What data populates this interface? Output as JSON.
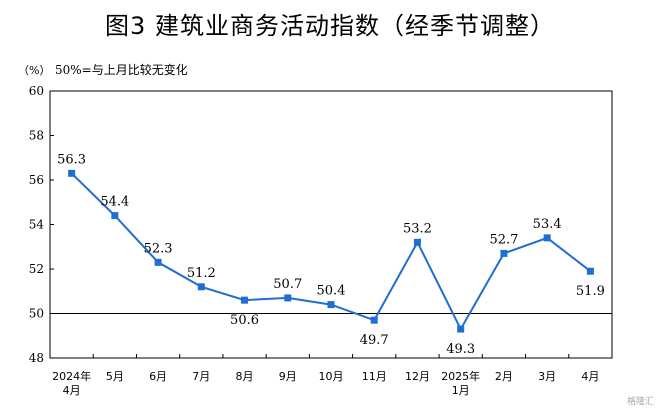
{
  "title": "图3  建筑业商务活动指数（经季节调整）",
  "unit_label": "（%）",
  "note": "50%=与上月比较无变化",
  "watermark": "格隆汇",
  "chart_data": {
    "type": "line",
    "title": "图3  建筑业商务活动指数（经季节调整）",
    "xlabel": "",
    "ylabel": "（%）",
    "ylim": [
      48,
      60
    ],
    "yticks": [
      48,
      50,
      52,
      54,
      56,
      58,
      60
    ],
    "reference_line": 50,
    "grid": false,
    "color": "#1f6fd0",
    "categories": [
      [
        "2024年",
        "4月"
      ],
      [
        "5月"
      ],
      [
        "6月"
      ],
      [
        "7月"
      ],
      [
        "8月"
      ],
      [
        "9月"
      ],
      [
        "10月"
      ],
      [
        "11月"
      ],
      [
        "12月"
      ],
      [
        "2025年",
        "1月"
      ],
      [
        "2月"
      ],
      [
        "3月"
      ],
      [
        "4月"
      ]
    ],
    "series": [
      {
        "values": [
          56.3,
          54.4,
          52.3,
          51.2,
          50.6,
          50.7,
          50.4,
          49.7,
          53.2,
          49.3,
          52.7,
          53.4,
          51.9
        ]
      }
    ]
  }
}
